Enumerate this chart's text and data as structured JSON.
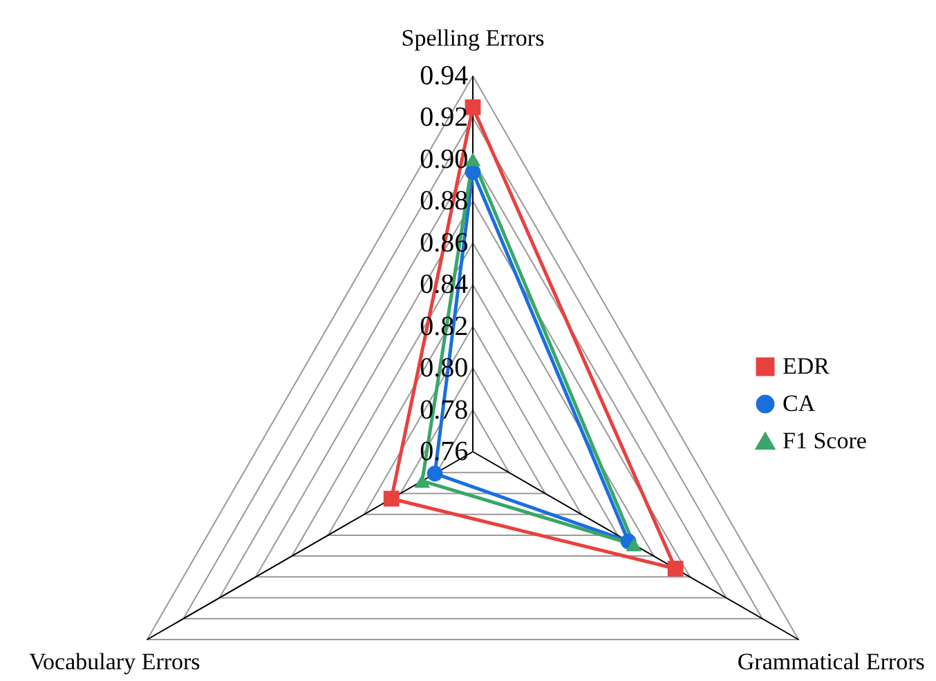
{
  "chart_data": {
    "type": "radar",
    "categories": [
      "Spelling Errors",
      "Grammatical Errors",
      "Vocabulary Errors"
    ],
    "ylim": [
      0.76,
      0.94
    ],
    "yticks": [
      0.76,
      0.78,
      {
        "value": 0.8,
        "label": "0.80"
      },
      0.82,
      0.84,
      0.86,
      0.88,
      {
        "value": 0.9,
        "label": "0.90"
      },
      0.92,
      0.94
    ],
    "legend": "right",
    "series": [
      {
        "name": "EDR",
        "color": "#e8413f",
        "marker": "square",
        "values": [
          0.925,
          0.872,
          0.805
        ]
      },
      {
        "name": "CA",
        "color": "#1a6fdf",
        "marker": "circle",
        "values": [
          0.894,
          0.846,
          0.781
        ]
      },
      {
        "name": "F1 Score",
        "color": "#3aa66a",
        "marker": "triangle",
        "values": [
          0.9,
          0.849,
          0.788
        ]
      }
    ]
  }
}
